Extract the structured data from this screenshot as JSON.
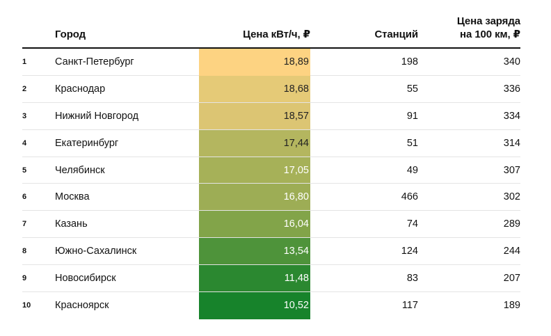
{
  "headers": {
    "city": "Город",
    "price": "Цена кВт/ч, ₽",
    "stations": "Станций",
    "charge_line1": "Цена заряда",
    "charge_line2": "на 100 км, ₽"
  },
  "rows": [
    {
      "rank": "1",
      "city": "Санкт-Петербург",
      "price": "18,89",
      "stations": "198",
      "charge": "340",
      "color": "#fdd382",
      "text_color": "#222222"
    },
    {
      "rank": "2",
      "city": "Краснодар",
      "price": "18,68",
      "stations": "55",
      "charge": "336",
      "color": "#e5ca77",
      "text_color": "#222222"
    },
    {
      "rank": "3",
      "city": "Нижний Новгород",
      "price": "18,57",
      "stations": "91",
      "charge": "334",
      "color": "#dcc573",
      "text_color": "#222222"
    },
    {
      "rank": "4",
      "city": "Екатеринбург",
      "price": "17,44",
      "stations": "51",
      "charge": "314",
      "color": "#b4b65f",
      "text_color": "#222222"
    },
    {
      "rank": "5",
      "city": "Челябинск",
      "price": "17,05",
      "stations": "49",
      "charge": "307",
      "color": "#a6b158",
      "text_color": "#ffffff"
    },
    {
      "rank": "6",
      "city": "Москва",
      "price": "16,80",
      "stations": "466",
      "charge": "302",
      "color": "#9dad55",
      "text_color": "#ffffff"
    },
    {
      "rank": "7",
      "city": "Казань",
      "price": "16,04",
      "stations": "74",
      "charge": "289",
      "color": "#82a449",
      "text_color": "#ffffff"
    },
    {
      "rank": "8",
      "city": "Южно-Сахалинск",
      "price": "13,54",
      "stations": "124",
      "charge": "244",
      "color": "#4e933a",
      "text_color": "#ffffff"
    },
    {
      "rank": "9",
      "city": "Новосибирск",
      "price": "11,48",
      "stations": "83",
      "charge": "207",
      "color": "#2b8830",
      "text_color": "#ffffff"
    },
    {
      "rank": "10",
      "city": "Красноярск",
      "price": "10,52",
      "stations": "117",
      "charge": "189",
      "color": "#17832b",
      "text_color": "#ffffff"
    }
  ]
}
